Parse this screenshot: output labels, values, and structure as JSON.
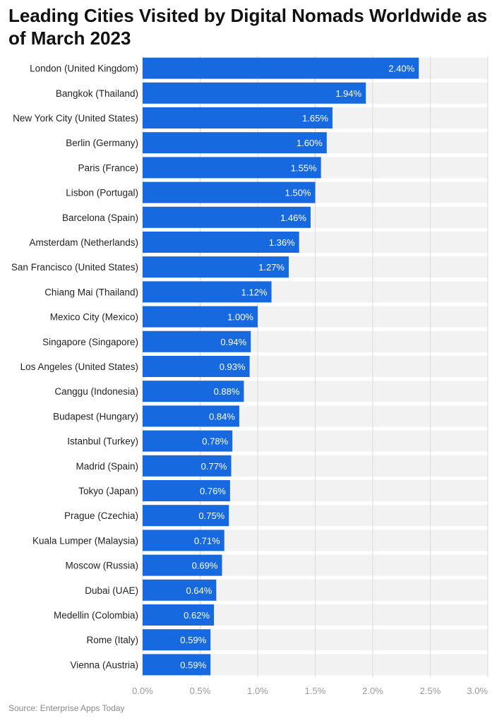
{
  "title": "Leading Cities Visited by Digital Nomads Worldwide as of March 2023",
  "source": "Source: Enterprise Apps Today",
  "colors": {
    "bar": "#1769e0",
    "band": "#f2f2f2",
    "grid": "#d9d9d9",
    "value_text": "#ffffff"
  },
  "chart_data": {
    "type": "bar",
    "orientation": "horizontal",
    "title": "Leading Cities Visited by Digital Nomads Worldwide as of March 2023",
    "xlabel": "",
    "ylabel": "",
    "xlim": [
      0,
      3.0
    ],
    "x_ticks": [
      0,
      0.5,
      1.0,
      1.5,
      2.0,
      2.5,
      3.0
    ],
    "x_tick_labels": [
      "0.0%",
      "0.5%",
      "1.0%",
      "1.5%",
      "2.0%",
      "2.5%",
      "3.0%"
    ],
    "grid": true,
    "legend": false,
    "categories": [
      "London (United Kingdom)",
      "Bangkok (Thailand)",
      "New York City (United States)",
      "Berlin (Germany)",
      "Paris (France)",
      "Lisbon (Portugal)",
      "Barcelona (Spain)",
      "Amsterdam (Netherlands)",
      "San Francisco (United States)",
      "Chiang Mai (Thailand)",
      "Mexico City (Mexico)",
      "Singapore (Singapore)",
      "Los Angeles (United States)",
      "Canggu (Indonesia)",
      "Budapest (Hungary)",
      "Istanbul (Turkey)",
      "Madrid (Spain)",
      "Tokyo (Japan)",
      "Prague (Czechia)",
      "Kuala Lumper (Malaysia)",
      "Moscow (Russia)",
      "Dubai (UAE)",
      "Medellin (Colombia)",
      "Rome (Italy)",
      "Vienna (Austria)"
    ],
    "values": [
      2.4,
      1.94,
      1.65,
      1.6,
      1.55,
      1.5,
      1.46,
      1.36,
      1.27,
      1.12,
      1.0,
      0.94,
      0.93,
      0.88,
      0.84,
      0.78,
      0.77,
      0.76,
      0.75,
      0.71,
      0.69,
      0.64,
      0.62,
      0.59,
      0.59
    ],
    "value_labels": [
      "2.40%",
      "1.94%",
      "1.65%",
      "1.60%",
      "1.55%",
      "1.50%",
      "1.46%",
      "1.36%",
      "1.27%",
      "1.12%",
      "1.00%",
      "0.94%",
      "0.93%",
      "0.88%",
      "0.84%",
      "0.78%",
      "0.77%",
      "0.76%",
      "0.75%",
      "0.71%",
      "0.69%",
      "0.64%",
      "0.62%",
      "0.59%",
      "0.59%"
    ]
  }
}
